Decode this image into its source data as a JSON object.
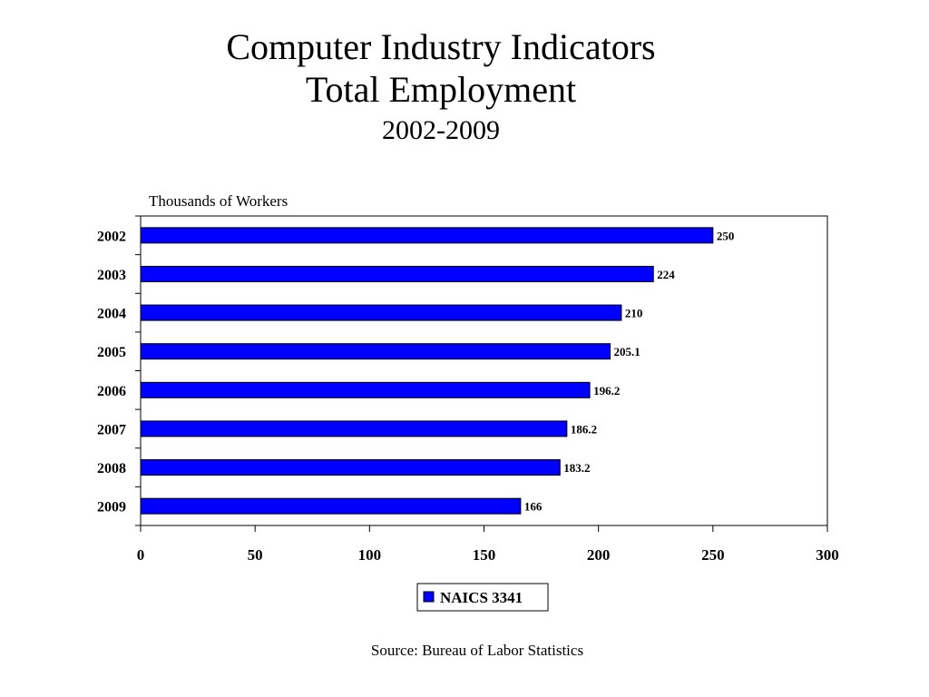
{
  "title": "Computer Industry Indicators",
  "subtitle": "Total Employment",
  "period": "2002-2009",
  "source": "Source:  Bureau of Labor Statistics",
  "chart_data": {
    "type": "bar",
    "orientation": "horizontal",
    "title": "Computer Industry Indicators Total Employment 2002-2009",
    "xlabel": "",
    "unit_label": "Thousands of Workers",
    "categories": [
      "2002",
      "2003",
      "2004",
      "2005",
      "2006",
      "2007",
      "2008",
      "2009"
    ],
    "series": [
      {
        "name": "NAICS 3341",
        "values": [
          250,
          224,
          210,
          205.1,
          196.2,
          186.2,
          183.2,
          166
        ],
        "data_labels": [
          "250",
          "224",
          "210",
          "205.1",
          "196.2",
          "186.2",
          "183.2",
          "166"
        ],
        "color": "#0000ff"
      }
    ],
    "xlim": [
      0,
      300
    ],
    "xticks": [
      0,
      50,
      100,
      150,
      200,
      250,
      300
    ],
    "grid": false,
    "legend_position": "bottom-center"
  }
}
